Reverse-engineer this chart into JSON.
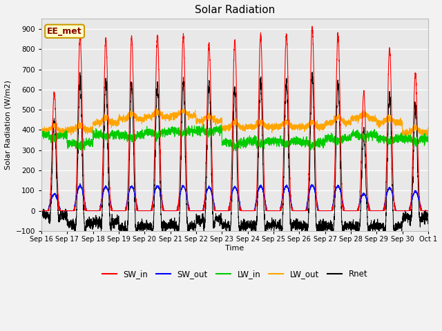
{
  "title": "Solar Radiation",
  "ylabel": "Solar Radiation (W/m2)",
  "xlabel": "Time",
  "ylim": [
    -100,
    950
  ],
  "yticks": [
    -100,
    0,
    100,
    200,
    300,
    400,
    500,
    600,
    700,
    800,
    900
  ],
  "legend_labels": [
    "SW_in",
    "SW_out",
    "LW_in",
    "LW_out",
    "Rnet"
  ],
  "colors": {
    "SW_in": "#FF0000",
    "SW_out": "#0000FF",
    "LW_in": "#00CC00",
    "LW_out": "#FFA500",
    "Rnet": "#000000"
  },
  "annotation_text": "EE_met",
  "annotation_bg": "#FFFFCC",
  "annotation_border": "#CC9900",
  "plot_bg": "#E8E8E8",
  "fig_bg": "#F2F2F2",
  "n_days": 15,
  "points_per_day": 288,
  "peak_sw": [
    590,
    875,
    850,
    860,
    870,
    865,
    830,
    840,
    870,
    875,
    910,
    875,
    585,
    805,
    680
  ],
  "lw_in_base": [
    375,
    335,
    380,
    375,
    390,
    395,
    400,
    335,
    345,
    345,
    340,
    360,
    378,
    358,
    355
  ],
  "lw_out_base": [
    395,
    400,
    435,
    455,
    465,
    470,
    445,
    410,
    415,
    415,
    415,
    435,
    455,
    435,
    385
  ],
  "day_labels": [
    "Sep 16",
    "Sep 17",
    "Sep 18",
    "Sep 19",
    "Sep 20",
    "Sep 21",
    "Sep 22",
    "Sep 23",
    "Sep 24",
    "Sep 25",
    "Sep 26",
    "Sep 27",
    "Sep 28",
    "Sep 29",
    "Sep 30",
    "Oct 1"
  ]
}
